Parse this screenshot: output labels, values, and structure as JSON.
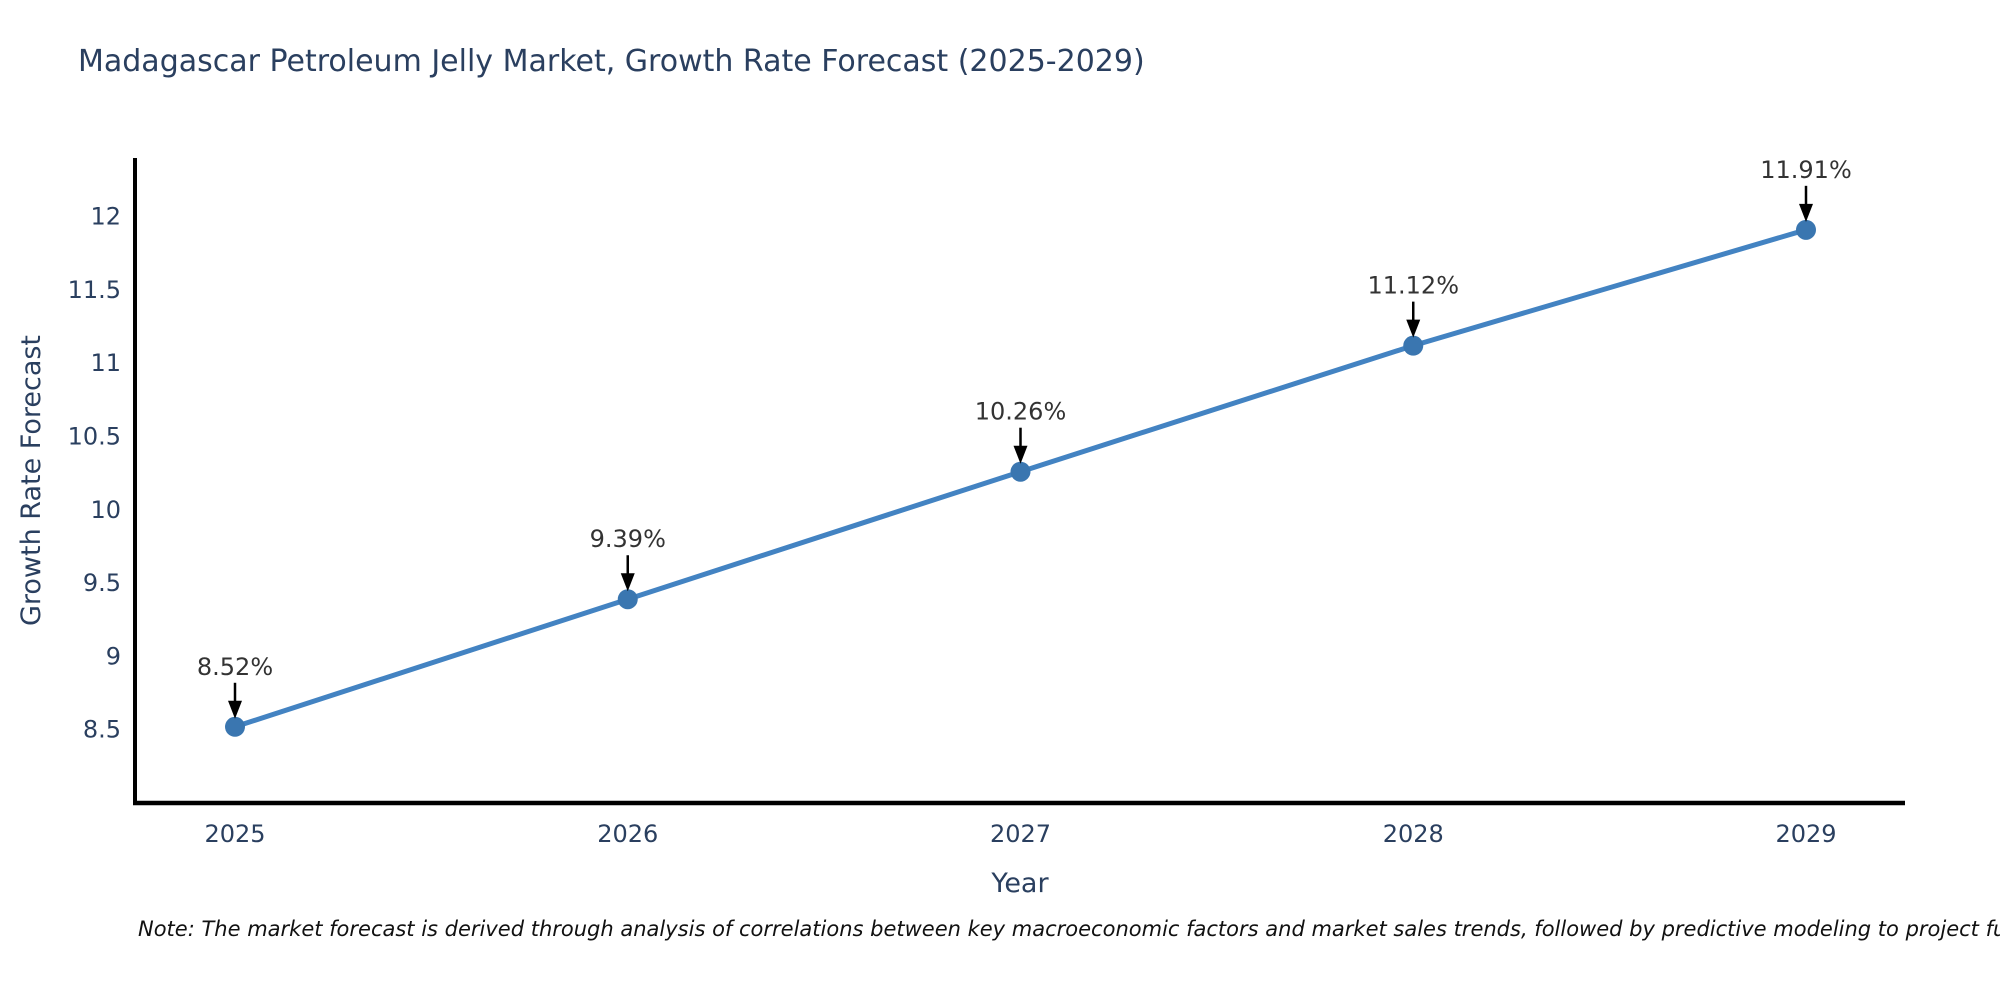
{
  "chart_data": {
    "type": "line",
    "title": "Madagascar Petroleum Jelly Market, Growth Rate Forecast (2025-2029)",
    "xlabel": "Year",
    "ylabel": "Growth Rate Forecast",
    "categories": [
      "2025",
      "2026",
      "2027",
      "2028",
      "2029"
    ],
    "series": [
      {
        "name": "Growth Rate Forecast",
        "values": [
          8.52,
          9.39,
          10.26,
          11.12,
          11.91
        ]
      }
    ],
    "point_labels": [
      "8.52%",
      "9.39%",
      "10.26%",
      "11.12%",
      "11.91%"
    ],
    "yticks": [
      "8.5",
      "9",
      "9.5",
      "10",
      "10.5",
      "11",
      "11.5",
      "12"
    ],
    "ytick_values": [
      8.5,
      9,
      9.5,
      10,
      10.5,
      11,
      11.5,
      12
    ],
    "ylim": [
      8.0,
      12.4
    ],
    "grid": false,
    "legend": "none",
    "colors": {
      "line": "#4383c2",
      "marker": "#3a76b0",
      "axis": "#000000",
      "tick_text": "#2a3f5f",
      "axis_title_text": "#2a3f5f",
      "title_text": "#2a3f5f",
      "annotation_text": "#333333",
      "arrow": "#000000"
    }
  },
  "note": {
    "text": "Note: The market forecast is derived through analysis of correlations between key macroeconomic factors and market sales trends, followed by predictive modeling to project future sal"
  }
}
